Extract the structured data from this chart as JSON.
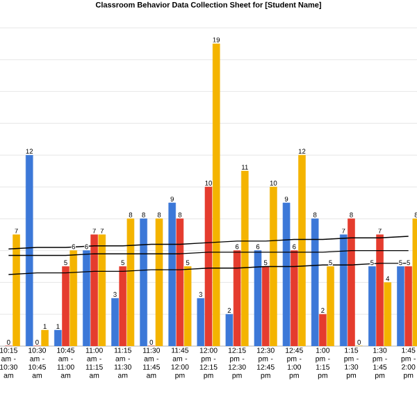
{
  "chart_data": {
    "type": "bar",
    "title": "Classroom Behavior Data Collection Sheet for [Student Name]",
    "categories": [
      "10:15 am - 10:30 am",
      "10:30 am - 10:45 am",
      "10:45 am - 11:00 am",
      "11:00 am - 11:15 am",
      "11:15 am - 11:30 am",
      "11:30 am - 11:45 am",
      "11:45 am - 12:00 pm",
      "12:00 pm - 12:15 pm",
      "12:15 pm - 12:30 pm",
      "12:30 pm - 12:45 pm",
      "12:45 pm - 1:00 pm",
      "1:00 pm - 1:15 pm",
      "1:15 pm - 1:30 pm",
      "1:30 pm - 1:45 pm",
      "1:45 pm - 2:00 pm"
    ],
    "series": [
      {
        "color": "#3c78d8",
        "values": [
          null,
          12,
          1,
          6,
          3,
          8,
          9,
          3,
          2,
          6,
          9,
          8,
          7,
          5,
          5
        ],
        "value_labels": [
          null,
          "12",
          "1",
          "6",
          "3",
          "8",
          "9",
          "3",
          "2",
          "6",
          "9",
          "8",
          "7",
          "5",
          "5"
        ]
      },
      {
        "color": "#e53c2e",
        "values": [
          0,
          0,
          5,
          7,
          5,
          0,
          8,
          10,
          6,
          5,
          6,
          2,
          8,
          7,
          5
        ],
        "value_labels": [
          "0",
          "0",
          "5",
          "7",
          "5",
          "0",
          "8",
          "10",
          "6",
          "5",
          "6",
          "2",
          "8",
          "7",
          "5"
        ]
      },
      {
        "color": "#f4b400",
        "values": [
          7,
          1,
          6,
          7,
          8,
          8,
          5,
          19,
          11,
          10,
          12,
          5,
          0,
          4,
          8
        ],
        "value_labels": [
          "7",
          "1",
          "6",
          "7",
          "8",
          "8",
          "5",
          "19",
          "11",
          "10",
          "12",
          "5",
          "0",
          "4",
          "8"
        ]
      },
      {
        "type": "line",
        "color": "#000000",
        "values": [
          6.1,
          6.2,
          6.2,
          6.3,
          6.3,
          6.4,
          6.4,
          6.5,
          6.6,
          6.6,
          6.7,
          6.7,
          6.8,
          6.8,
          6.9
        ]
      },
      {
        "type": "line",
        "color": "#000000",
        "values": [
          5.7,
          5.7,
          5.7,
          5.8,
          5.8,
          5.8,
          5.8,
          5.9,
          5.9,
          5.9,
          5.9,
          5.9,
          6.0,
          6.0,
          6.0
        ]
      },
      {
        "type": "line",
        "color": "#000000",
        "values": [
          4.5,
          4.6,
          4.6,
          4.7,
          4.7,
          4.8,
          4.8,
          4.9,
          4.9,
          5.0,
          5.0,
          5.1,
          5.1,
          5.2,
          5.2
        ]
      }
    ],
    "ylim": [
      0,
      20
    ],
    "yticks": [
      {
        "value": 0,
        "label": null
      },
      {
        "value": 2,
        "label": null
      },
      {
        "value": 4,
        "label": null
      },
      {
        "value": 6,
        "label": null
      },
      {
        "value": 8,
        "label": null
      },
      {
        "value": 10,
        "label": null
      },
      {
        "value": 12,
        "label": null
      },
      {
        "value": 14,
        "label": null
      },
      {
        "value": 16,
        "label": null
      },
      {
        "value": 18,
        "label": null
      },
      {
        "value": 20,
        "label": null
      }
    ],
    "grid": "y",
    "tick_labels": "x"
  }
}
